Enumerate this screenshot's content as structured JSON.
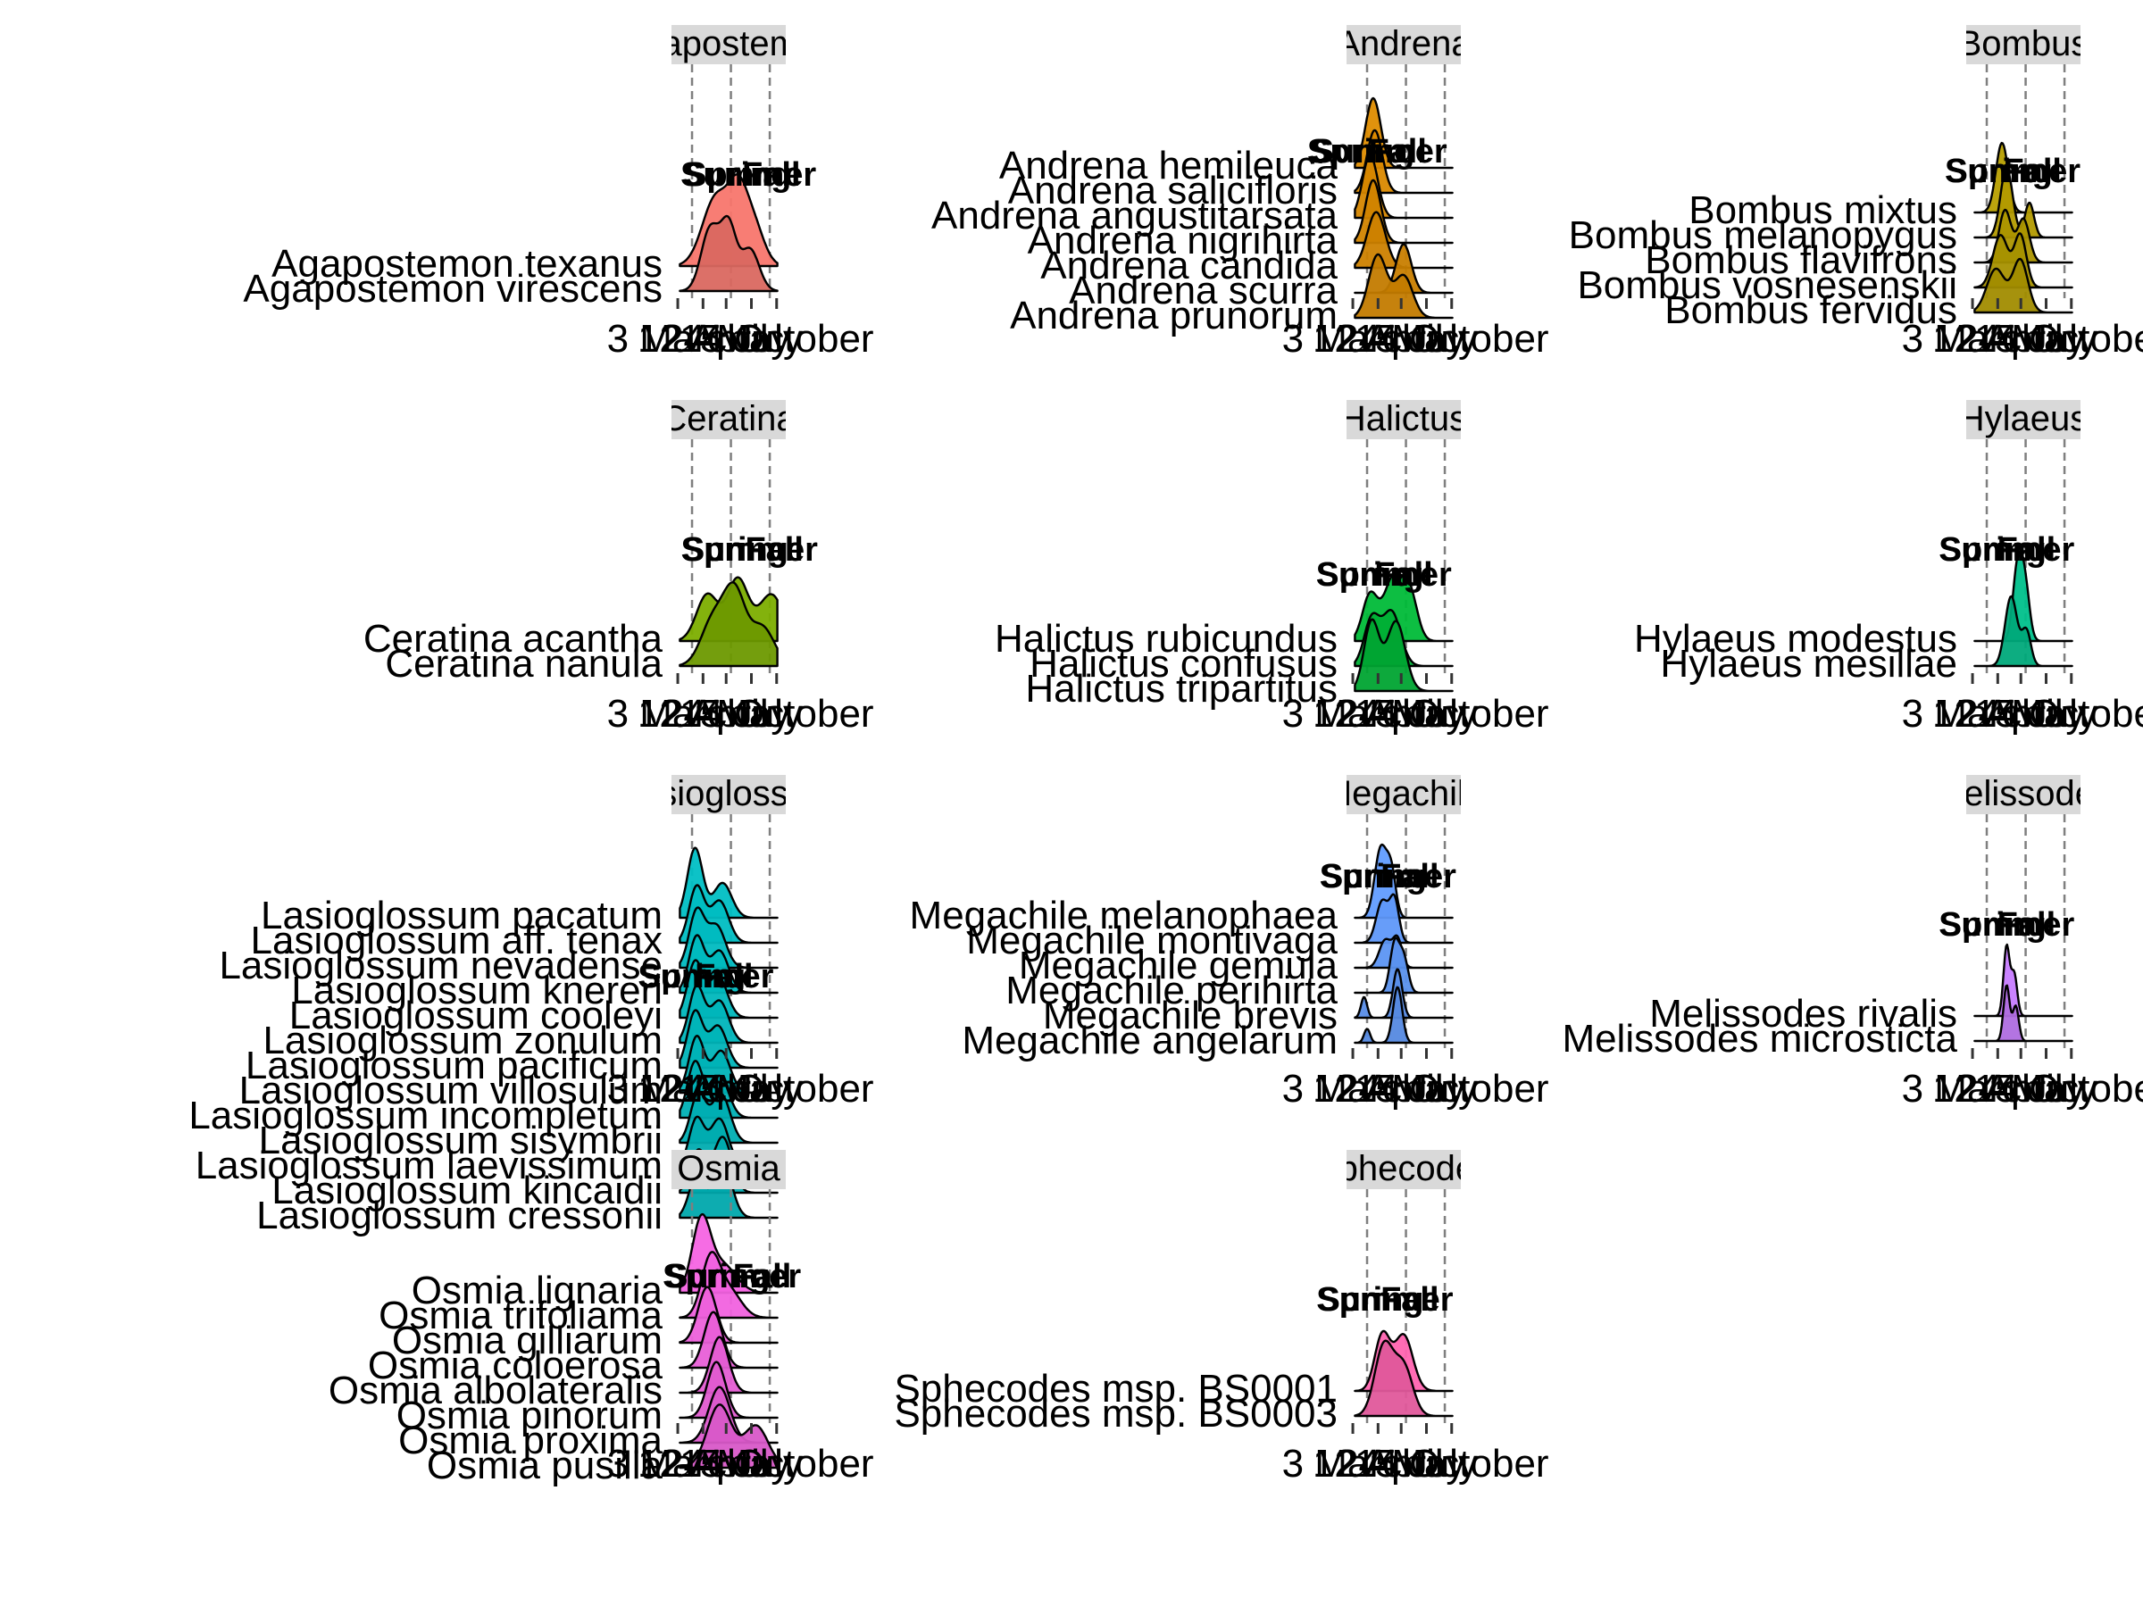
{
  "chart_data": {
    "type": "ridgeline",
    "title": "",
    "xlabel": "",
    "ylabel": "",
    "x_ticks": [
      "3 March",
      "12 April",
      "24 May",
      "5 July",
      "14 October"
    ],
    "season_lines": [
      "Spring",
      "Summer",
      "Fall"
    ],
    "panels": [
      {
        "genus": "Agapostemon",
        "strip": "Agapostemon",
        "color": "#F8766D",
        "season_label_x": [
          3.6,
          4.3,
          5.8
        ],
        "species": [
          {
            "name": "Agapostemon texanus",
            "peaks": [
              [
                2.2,
                0.9,
                1.0
              ],
              [
                3.6,
                0.6,
                0.8
              ],
              [
                4.6,
                0.7,
                0.6
              ]
            ]
          },
          {
            "name": "Agapostemon virescens",
            "peaks": [
              [
                1.8,
                0.6,
                0.9
              ],
              [
                3.0,
                0.5,
                0.9
              ],
              [
                4.4,
                0.6,
                0.6
              ]
            ]
          }
        ]
      },
      {
        "genus": "Andrena",
        "strip": "Andrena",
        "color": "#DE8C00",
        "season_label_x": [
          0.2,
          1.4,
          2.6
        ],
        "species": [
          {
            "name": "Andrena hemileuca",
            "peaks": [
              [
                1.0,
                0.5,
                1.0
              ]
            ]
          },
          {
            "name": "Andrena salicifloris",
            "peaks": [
              [
                1.1,
                0.5,
                0.9
              ]
            ]
          },
          {
            "name": "Andrena angustitarsata",
            "peaks": [
              [
                0.8,
                0.5,
                0.9
              ]
            ]
          },
          {
            "name": "Andrena nigrihirta",
            "peaks": [
              [
                1.0,
                0.5,
                0.9
              ]
            ]
          },
          {
            "name": "Andrena candida",
            "peaks": [
              [
                1.2,
                0.6,
                0.8
              ]
            ]
          },
          {
            "name": "Andrena scurra",
            "peaks": [
              [
                3.0,
                0.5,
                0.7
              ]
            ]
          },
          {
            "name": "Andrena prunorum",
            "peaks": [
              [
                1.3,
                0.6,
                0.9
              ],
              [
                3.0,
                0.6,
                0.6
              ]
            ]
          }
        ]
      },
      {
        "genus": "Bombus",
        "strip": "Bombus",
        "color": "#B79F00",
        "season_label_x": [
          1.4,
          2.3,
          3.6
        ],
        "species": [
          {
            "name": "Bombus mixtus",
            "peaks": [
              [
                1.6,
                0.4,
                0.8
              ]
            ]
          },
          {
            "name": "Bombus melanopygus",
            "peaks": [
              [
                1.9,
                0.4,
                0.8
              ],
              [
                3.4,
                0.3,
                0.4
              ]
            ]
          },
          {
            "name": "Bombus flavifrons",
            "peaks": [
              [
                1.8,
                0.4,
                0.6
              ],
              [
                3.0,
                0.4,
                0.5
              ]
            ]
          },
          {
            "name": "Bombus vosnesenskii",
            "peaks": [
              [
                1.5,
                0.5,
                0.6
              ],
              [
                2.8,
                0.4,
                0.6
              ]
            ]
          },
          {
            "name": "Bombus fervidus",
            "peaks": [
              [
                1.2,
                0.6,
                0.5
              ],
              [
                2.8,
                0.5,
                0.6
              ]
            ]
          }
        ]
      },
      {
        "genus": "Ceratina",
        "strip": "Ceratina",
        "color": "#7CAE00",
        "season_label_x": [
          3.4,
          4.4,
          6.0
        ],
        "species": [
          {
            "name": "Ceratina acantha",
            "peaks": [
              [
                1.6,
                0.7,
                0.6
              ],
              [
                3.6,
                0.7,
                0.8
              ],
              [
                5.8,
                0.8,
                0.6
              ]
            ]
          },
          {
            "name": "Ceratina nanula",
            "peaks": [
              [
                2.0,
                0.8,
                0.6
              ],
              [
                3.4,
                0.7,
                0.9
              ],
              [
                5.2,
                0.8,
                0.5
              ]
            ]
          }
        ]
      },
      {
        "genus": "Halictus",
        "strip": "Halictus",
        "color": "#00BA38",
        "season_label_x": [
          0.8,
          1.7,
          3.0
        ],
        "species": [
          {
            "name": "Halictus rubicundus",
            "peaks": [
              [
                0.8,
                0.5,
                0.6
              ],
              [
                2.3,
                0.6,
                0.8
              ],
              [
                3.4,
                0.5,
                0.6
              ]
            ]
          },
          {
            "name": "Halictus confusus",
            "peaks": [
              [
                0.9,
                0.5,
                0.6
              ],
              [
                2.2,
                0.6,
                0.7
              ]
            ]
          },
          {
            "name": "Halictus tripartitus",
            "peaks": [
              [
                0.9,
                0.5,
                0.9
              ],
              [
                2.5,
                0.6,
                0.9
              ]
            ]
          }
        ]
      },
      {
        "genus": "Hylaeus",
        "strip": "Hylaeus",
        "color": "#00C08B",
        "season_label_x": [
          1.0,
          1.9,
          3.2
        ],
        "species": [
          {
            "name": "Hylaeus modestus",
            "peaks": [
              [
                2.6,
                0.3,
                1.0
              ],
              [
                3.1,
                0.3,
                0.8
              ]
            ]
          },
          {
            "name": "Hylaeus mesillae",
            "peaks": [
              [
                2.2,
                0.4,
                1.0
              ],
              [
                3.2,
                0.3,
                0.5
              ]
            ]
          }
        ]
      },
      {
        "genus": "Lasioglossum",
        "strip": "Lasioglossum",
        "color": "#00BFC4",
        "season_label_x": [
          0.6,
          1.5,
          2.7
        ],
        "species": [
          {
            "name": "Lasioglossum pacatum",
            "peaks": [
              [
                0.8,
                0.5,
                1.0
              ],
              [
                2.6,
                0.6,
                0.5
              ]
            ]
          },
          {
            "name": "Lasioglossum aff. tenax",
            "peaks": [
              [
                0.9,
                0.5,
                0.8
              ],
              [
                2.4,
                0.6,
                0.6
              ]
            ]
          },
          {
            "name": "Lasioglossum nevadense",
            "peaks": [
              [
                0.9,
                0.5,
                0.8
              ],
              [
                2.2,
                0.6,
                0.6
              ]
            ]
          },
          {
            "name": "Lasioglossum knereri",
            "peaks": [
              [
                0.9,
                0.5,
                0.8
              ],
              [
                2.4,
                0.6,
                0.6
              ]
            ]
          },
          {
            "name": "Lasioglossum cooleyi",
            "peaks": [
              [
                0.8,
                0.5,
                0.8
              ],
              [
                2.3,
                0.6,
                0.6
              ]
            ]
          },
          {
            "name": "Lasioglossum zonulum",
            "peaks": [
              [
                0.9,
                0.5,
                0.8
              ],
              [
                2.4,
                0.6,
                0.6
              ]
            ]
          },
          {
            "name": "Lasioglossum pacificum",
            "peaks": [
              [
                0.8,
                0.5,
                0.8
              ],
              [
                2.3,
                0.6,
                0.6
              ]
            ]
          },
          {
            "name": "Lasioglossum villosulum",
            "peaks": [
              [
                0.9,
                0.5,
                0.8
              ],
              [
                2.5,
                0.6,
                0.6
              ]
            ]
          },
          {
            "name": "Lasioglossum incompletum",
            "peaks": [
              [
                0.8,
                0.5,
                0.8
              ],
              [
                2.4,
                0.6,
                0.6
              ]
            ]
          },
          {
            "name": "Lasioglossum sisymbrii",
            "peaks": [
              [
                1.0,
                0.5,
                0.7
              ],
              [
                2.5,
                0.6,
                0.7
              ]
            ]
          },
          {
            "name": "Lasioglossum laevissimum",
            "peaks": [
              [
                0.9,
                0.5,
                0.7
              ],
              [
                2.4,
                0.6,
                0.7
              ]
            ]
          },
          {
            "name": "Lasioglossum kincaidii",
            "peaks": [
              [
                1.0,
                0.5,
                0.6
              ],
              [
                2.6,
                0.6,
                0.8
              ]
            ]
          },
          {
            "name": "Lasioglossum cressonii",
            "peaks": [
              [
                0.9,
                0.5,
                0.6
              ],
              [
                2.6,
                0.6,
                0.8
              ]
            ]
          }
        ]
      },
      {
        "genus": "Megachile",
        "strip": "Megachile",
        "color": "#619CFF",
        "season_label_x": [
          1.0,
          2.0,
          3.4
        ],
        "species": [
          {
            "name": "Megachile melanophaea",
            "peaks": [
              [
                1.5,
                0.4,
                1.0
              ],
              [
                2.2,
                0.3,
                0.6
              ]
            ]
          },
          {
            "name": "Megachile montivaga",
            "peaks": [
              [
                1.6,
                0.4,
                0.6
              ],
              [
                2.4,
                0.3,
                0.6
              ]
            ]
          },
          {
            "name": "Megachile gemula",
            "peaks": [
              [
                1.8,
                0.4,
                0.4
              ],
              [
                2.6,
                0.3,
                0.4
              ]
            ]
          },
          {
            "name": "Megachile perihirta",
            "peaks": [
              [
                2.4,
                0.3,
                0.7
              ],
              [
                3.0,
                0.3,
                0.5
              ]
            ]
          },
          {
            "name": "Megachile brevis",
            "peaks": [
              [
                0.4,
                0.2,
                0.3
              ],
              [
                2.6,
                0.3,
                0.7
              ]
            ]
          },
          {
            "name": "Megachile angelarum",
            "peaks": [
              [
                0.6,
                0.2,
                0.2
              ],
              [
                2.6,
                0.3,
                0.8
              ]
            ]
          }
        ]
      },
      {
        "genus": "Melissodes",
        "strip": "Melissodes",
        "color": "#C77CFF",
        "season_label_x": [
          1.0,
          1.9,
          3.2
        ],
        "species": [
          {
            "name": "Melissodes rivalis",
            "peaks": [
              [
                1.9,
                0.2,
                1.0
              ],
              [
                2.4,
                0.2,
                0.6
              ]
            ]
          },
          {
            "name": "Melissodes microsticta",
            "peaks": [
              [
                1.9,
                0.2,
                0.8
              ],
              [
                2.5,
                0.2,
                0.5
              ]
            ]
          }
        ]
      },
      {
        "genus": "Osmia",
        "strip": "Osmia",
        "color": "#F564E3",
        "season_label_x": [
          2.2,
          3.3,
          5.2
        ],
        "species": [
          {
            "name": "Osmia lignaria",
            "peaks": [
              [
                1.2,
                0.6,
                1.0
              ],
              [
                2.6,
                0.9,
                0.4
              ]
            ]
          },
          {
            "name": "Osmia trifoliama",
            "peaks": [
              [
                1.8,
                0.6,
                0.8
              ],
              [
                3.0,
                0.8,
                0.4
              ]
            ]
          },
          {
            "name": "Osmia gilliarum",
            "peaks": [
              [
                1.6,
                0.6,
                0.8
              ]
            ]
          },
          {
            "name": "Osmia coloerosa",
            "peaks": [
              [
                2.0,
                0.6,
                0.8
              ]
            ]
          },
          {
            "name": "Osmia albolateralis",
            "peaks": [
              [
                2.4,
                0.6,
                0.8
              ]
            ]
          },
          {
            "name": "Osmia pinorum",
            "peaks": [
              [
                2.2,
                0.6,
                0.8
              ]
            ]
          },
          {
            "name": "Osmia proxima",
            "peaks": [
              [
                2.4,
                0.7,
                0.8
              ]
            ]
          },
          {
            "name": "Osmia pusilla",
            "peaks": [
              [
                2.4,
                0.8,
                0.9
              ],
              [
                4.8,
                0.8,
                0.6
              ]
            ]
          }
        ]
      },
      {
        "genus": "Sphecodes",
        "strip": "Sphecodes",
        "color": "#FF64B0",
        "season_label_x": [
          0.8,
          1.8,
          3.4
        ],
        "species": [
          {
            "name": "Sphecodes msp. BS0001",
            "peaks": [
              [
                1.6,
                0.5,
                0.8
              ],
              [
                3.0,
                0.6,
                0.8
              ]
            ]
          },
          {
            "name": "Sphecodes msp. BS0003",
            "peaks": [
              [
                1.7,
                0.6,
                1.0
              ],
              [
                3.0,
                0.6,
                0.7
              ]
            ]
          }
        ]
      }
    ]
  }
}
